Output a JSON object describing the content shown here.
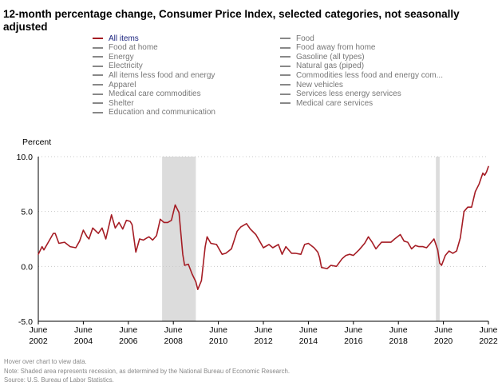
{
  "title": "12-month percentage change, Consumer Price Index, selected categories, not seasonally adjusted",
  "legend": {
    "left": [
      "All items",
      "Food at home",
      "Energy",
      "Electricity",
      "All items less food and energy",
      "Apparel",
      "Medical care commodities",
      "Shelter",
      "Education and communication"
    ],
    "right": [
      "Food",
      "Food away from home",
      "Gasoline (all types)",
      "Natural gas (piped)",
      "Commodities less food and energy com...",
      "New vehicles",
      "Services less energy services",
      "Medical care services"
    ]
  },
  "footer": {
    "hint": "Hover over chart to view data.",
    "note": "Note: Shaded area represents recession, as determined by the National Bureau of Economic Research.",
    "source": "Source: U.S. Bureau of Labor Statistics."
  },
  "colors": {
    "series": "#a51c24",
    "recession": "#dcdcdc",
    "grid": "#c8c8c8",
    "legend_active": "#1a237e",
    "legend_inactive": "#777777"
  },
  "chart_data": {
    "type": "line",
    "ylabel": "Percent",
    "ylim": [
      -5.0,
      10.0
    ],
    "yticks": [
      "10.0",
      "5.0",
      "0.0",
      "-5.0"
    ],
    "xlim": [
      "2002-06",
      "2022-06"
    ],
    "xticks": [
      {
        "month": "June",
        "year": "2002"
      },
      {
        "month": "June",
        "year": "2004"
      },
      {
        "month": "June",
        "year": "2006"
      },
      {
        "month": "June",
        "year": "2008"
      },
      {
        "month": "June",
        "year": "2010"
      },
      {
        "month": "June",
        "year": "2012"
      },
      {
        "month": "June",
        "year": "2014"
      },
      {
        "month": "June",
        "year": "2016"
      },
      {
        "month": "June",
        "year": "2018"
      },
      {
        "month": "June",
        "year": "2020"
      },
      {
        "month": "June",
        "year": "2022"
      }
    ],
    "grid": "horizontal dotted",
    "recessions": [
      [
        "2007-12",
        "2009-06"
      ],
      [
        "2020-02",
        "2020-04"
      ]
    ],
    "series": [
      {
        "name": "All items",
        "points": [
          [
            "2002-06",
            1.1
          ],
          [
            "2002-08",
            1.8
          ],
          [
            "2002-09",
            1.5
          ],
          [
            "2002-12",
            2.4
          ],
          [
            "2003-02",
            3.0
          ],
          [
            "2003-03",
            3.0
          ],
          [
            "2003-05",
            2.1
          ],
          [
            "2003-08",
            2.2
          ],
          [
            "2003-11",
            1.8
          ],
          [
            "2004-02",
            1.7
          ],
          [
            "2004-04",
            2.3
          ],
          [
            "2004-06",
            3.3
          ],
          [
            "2004-08",
            2.7
          ],
          [
            "2004-09",
            2.5
          ],
          [
            "2004-11",
            3.5
          ],
          [
            "2005-02",
            3.0
          ],
          [
            "2005-04",
            3.5
          ],
          [
            "2005-06",
            2.5
          ],
          [
            "2005-09",
            4.7
          ],
          [
            "2005-11",
            3.5
          ],
          [
            "2006-01",
            4.0
          ],
          [
            "2006-03",
            3.4
          ],
          [
            "2006-05",
            4.2
          ],
          [
            "2006-07",
            4.1
          ],
          [
            "2006-08",
            3.8
          ],
          [
            "2006-10",
            1.3
          ],
          [
            "2006-12",
            2.5
          ],
          [
            "2007-02",
            2.4
          ],
          [
            "2007-04",
            2.6
          ],
          [
            "2007-05",
            2.7
          ],
          [
            "2007-07",
            2.4
          ],
          [
            "2007-09",
            2.8
          ],
          [
            "2007-11",
            4.3
          ],
          [
            "2008-01",
            4.0
          ],
          [
            "2008-03",
            4.0
          ],
          [
            "2008-05",
            4.2
          ],
          [
            "2008-07",
            5.6
          ],
          [
            "2008-09",
            4.9
          ],
          [
            "2008-11",
            1.1
          ],
          [
            "2008-12",
            0.1
          ],
          [
            "2009-02",
            0.2
          ],
          [
            "2009-04",
            -0.7
          ],
          [
            "2009-06",
            -1.4
          ],
          [
            "2009-07",
            -2.1
          ],
          [
            "2009-09",
            -1.3
          ],
          [
            "2009-11",
            1.8
          ],
          [
            "2009-12",
            2.7
          ],
          [
            "2010-02",
            2.1
          ],
          [
            "2010-05",
            2.0
          ],
          [
            "2010-08",
            1.1
          ],
          [
            "2010-10",
            1.2
          ],
          [
            "2011-01",
            1.6
          ],
          [
            "2011-04",
            3.2
          ],
          [
            "2011-06",
            3.6
          ],
          [
            "2011-09",
            3.9
          ],
          [
            "2011-11",
            3.4
          ],
          [
            "2012-02",
            2.9
          ],
          [
            "2012-04",
            2.3
          ],
          [
            "2012-06",
            1.7
          ],
          [
            "2012-09",
            2.0
          ],
          [
            "2012-11",
            1.7
          ],
          [
            "2013-02",
            2.0
          ],
          [
            "2013-04",
            1.1
          ],
          [
            "2013-06",
            1.8
          ],
          [
            "2013-09",
            1.2
          ],
          [
            "2013-11",
            1.2
          ],
          [
            "2014-02",
            1.1
          ],
          [
            "2014-04",
            2.0
          ],
          [
            "2014-06",
            2.1
          ],
          [
            "2014-09",
            1.7
          ],
          [
            "2014-11",
            1.3
          ],
          [
            "2014-12",
            0.8
          ],
          [
            "2015-01",
            -0.1
          ],
          [
            "2015-04",
            -0.2
          ],
          [
            "2015-06",
            0.1
          ],
          [
            "2015-09",
            0.0
          ],
          [
            "2015-12",
            0.7
          ],
          [
            "2016-02",
            1.0
          ],
          [
            "2016-04",
            1.1
          ],
          [
            "2016-06",
            1.0
          ],
          [
            "2016-09",
            1.5
          ],
          [
            "2016-12",
            2.1
          ],
          [
            "2017-02",
            2.7
          ],
          [
            "2017-04",
            2.2
          ],
          [
            "2017-06",
            1.6
          ],
          [
            "2017-09",
            2.2
          ],
          [
            "2017-11",
            2.2
          ],
          [
            "2018-02",
            2.2
          ],
          [
            "2018-04",
            2.5
          ],
          [
            "2018-07",
            2.9
          ],
          [
            "2018-09",
            2.3
          ],
          [
            "2018-11",
            2.2
          ],
          [
            "2019-01",
            1.6
          ],
          [
            "2019-03",
            1.9
          ],
          [
            "2019-05",
            1.8
          ],
          [
            "2019-07",
            1.8
          ],
          [
            "2019-09",
            1.7
          ],
          [
            "2019-11",
            2.1
          ],
          [
            "2020-01",
            2.5
          ],
          [
            "2020-03",
            1.5
          ],
          [
            "2020-04",
            0.3
          ],
          [
            "2020-05",
            0.1
          ],
          [
            "2020-07",
            1.0
          ],
          [
            "2020-09",
            1.4
          ],
          [
            "2020-11",
            1.2
          ],
          [
            "2021-01",
            1.4
          ],
          [
            "2021-03",
            2.6
          ],
          [
            "2021-05",
            5.0
          ],
          [
            "2021-07",
            5.4
          ],
          [
            "2021-09",
            5.4
          ],
          [
            "2021-11",
            6.8
          ],
          [
            "2022-01",
            7.5
          ],
          [
            "2022-03",
            8.5
          ],
          [
            "2022-04",
            8.3
          ],
          [
            "2022-05",
            8.6
          ],
          [
            "2022-06",
            9.1
          ]
        ]
      }
    ]
  }
}
